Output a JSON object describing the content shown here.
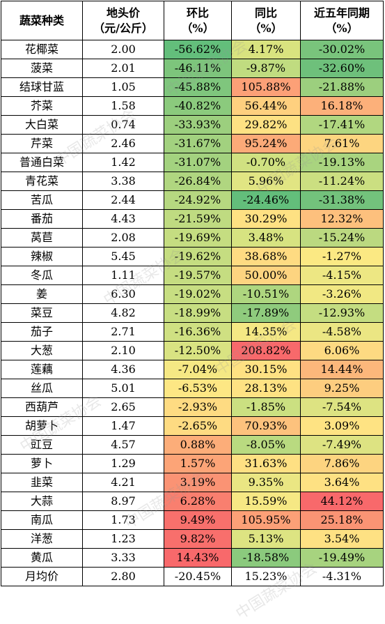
{
  "headers": [
    {
      "line1": "蔬菜种类",
      "line2": ""
    },
    {
      "line1": "地头价",
      "line2": "（元/公斤）"
    },
    {
      "line1": "环比",
      "line2": "（%）"
    },
    {
      "line1": "同比",
      "line2": "（%）"
    },
    {
      "line1": "近五年同期",
      "line2": "（%）"
    }
  ],
  "watermark": "中国蔬菜协会",
  "rows": [
    {
      "name": "花椰菜",
      "price": "2.00",
      "mom": "-56.62%",
      "yoy": "4.17%",
      "five": "-30.02%",
      "c_mom": "#63be7b",
      "c_yoy": "#d9e37f",
      "c_five": "#79c47c"
    },
    {
      "name": "菠菜",
      "price": "2.01",
      "mom": "-46.11%",
      "yoy": "-9.87%",
      "five": "-32.60%",
      "c_mom": "#7dc57c",
      "c_yoy": "#c0dc80",
      "c_five": "#6ec07b"
    },
    {
      "name": "结球甘蓝",
      "price": "1.05",
      "mom": "-45.88%",
      "yoy": "105.88%",
      "five": "-21.88%",
      "c_mom": "#7fc67d",
      "c_yoy": "#fca077",
      "c_five": "#9ccf7e"
    },
    {
      "name": "芥菜",
      "price": "1.58",
      "mom": "-40.82%",
      "yoy": "56.44%",
      "five": "16.18%",
      "c_mom": "#8bca7d",
      "c_yoy": "#fed07f",
      "c_five": "#fcb07a"
    },
    {
      "name": "大白菜",
      "price": "0.74",
      "mom": "-33.93%",
      "yoy": "29.82%",
      "five": "-17.41%",
      "c_mom": "#9ccf7e",
      "c_yoy": "#fde183",
      "c_five": "#b1d780"
    },
    {
      "name": "芹菜",
      "price": "2.46",
      "mom": "-31.67%",
      "yoy": "95.24%",
      "five": "7.61%",
      "c_mom": "#a2d17f",
      "c_yoy": "#fcaa78",
      "c_five": "#fdd580"
    },
    {
      "name": "普通白菜",
      "price": "1.42",
      "mom": "-31.07%",
      "yoy": "-0.70%",
      "five": "-19.13%",
      "c_mom": "#a3d27f",
      "c_yoy": "#d0e181",
      "c_five": "#a9d47f"
    },
    {
      "name": "青花菜",
      "price": "3.38",
      "mom": "-26.84%",
      "yoy": "5.96%",
      "five": "-11.24%",
      "c_mom": "#b0d680",
      "c_yoy": "#e1e583",
      "c_five": "#cbdf81"
    },
    {
      "name": "苦瓜",
      "price": "2.44",
      "mom": "-24.92%",
      "yoy": "-24.46%",
      "five": "-31.38%",
      "c_mom": "#b6d880",
      "c_yoy": "#63be7b",
      "c_five": "#73c27c"
    },
    {
      "name": "番茄",
      "price": "4.43",
      "mom": "-21.59%",
      "yoy": "30.29%",
      "five": "12.32%",
      "c_mom": "#bfdb81",
      "c_yoy": "#fee183",
      "c_five": "#fdc07d"
    },
    {
      "name": "莴苣",
      "price": "2.08",
      "mom": "-19.69%",
      "yoy": "3.48%",
      "five": "-15.24%",
      "c_mom": "#c5dd81",
      "c_yoy": "#d7e381",
      "c_five": "#bbd980"
    },
    {
      "name": "辣椒",
      "price": "5.45",
      "mom": "-19.62%",
      "yoy": "38.68%",
      "five": "-1.27%",
      "c_mom": "#c5dd81",
      "c_yoy": "#fedb82",
      "c_five": "#fbe983"
    },
    {
      "name": "冬瓜",
      "price": "1.11",
      "mom": "-19.57%",
      "yoy": "50.00%",
      "five": "-4.15%",
      "c_mom": "#c5dd81",
      "c_yoy": "#fdd480",
      "c_five": "#ede783"
    },
    {
      "name": "姜",
      "price": "6.30",
      "mom": "-19.02%",
      "yoy": "-10.51%",
      "five": "-3.26%",
      "c_mom": "#c7de82",
      "c_yoy": "#aed67f",
      "c_five": "#f1e883"
    },
    {
      "name": "菜豆",
      "price": "4.82",
      "mom": "-18.99%",
      "yoy": "-17.89%",
      "five": "-12.93%",
      "c_mom": "#c7de82",
      "c_yoy": "#8fcb7d",
      "c_five": "#c4dd81"
    },
    {
      "name": "茄子",
      "price": "2.71",
      "mom": "-16.36%",
      "yoy": "14.35%",
      "five": "-4.58%",
      "c_mom": "#cfe082",
      "c_yoy": "#f5e884",
      "c_five": "#ebe683"
    },
    {
      "name": "大葱",
      "price": "2.10",
      "mom": "-12.50%",
      "yoy": "208.82%",
      "five": "6.06%",
      "c_mom": "#d9e382",
      "c_yoy": "#f8696b",
      "c_five": "#fdda82"
    },
    {
      "name": "莲藕",
      "price": "4.36",
      "mom": "-7.04%",
      "yoy": "30.15%",
      "five": "14.44%",
      "c_mom": "#f5e884",
      "c_yoy": "#fee183",
      "c_five": "#fcb77b"
    },
    {
      "name": "丝瓜",
      "price": "5.01",
      "mom": "-6.53%",
      "yoy": "28.13%",
      "five": "9.25%",
      "c_mom": "#fde784",
      "c_yoy": "#fee283",
      "c_five": "#fdcd7f"
    },
    {
      "name": "西葫芦",
      "price": "2.65",
      "mom": "-2.93%",
      "yoy": "-1.85%",
      "five": "-7.54%",
      "c_mom": "#fedb82",
      "c_yoy": "#cbe081",
      "c_five": "#dde382"
    },
    {
      "name": "胡萝卜",
      "price": "1.47",
      "mom": "-2.65%",
      "yoy": "70.93%",
      "five": "3.09%",
      "c_mom": "#fedb82",
      "c_yoy": "#fdc27d",
      "c_five": "#fee383"
    },
    {
      "name": "豇豆",
      "price": "4.57",
      "mom": "0.88%",
      "yoy": "-8.05%",
      "five": "-7.49%",
      "c_mom": "#fcad79",
      "c_yoy": "#b9da80",
      "c_five": "#dde382"
    },
    {
      "name": "萝卜",
      "price": "1.29",
      "mom": "1.57%",
      "yoy": "31.63%",
      "five": "7.86%",
      "c_mom": "#fca477",
      "c_yoy": "#fee083",
      "c_five": "#fdd480"
    },
    {
      "name": "韭菜",
      "price": "4.21",
      "mom": "3.19%",
      "yoy": "9.35%",
      "five": "3.64%",
      "c_mom": "#fa9374",
      "c_yoy": "#eae683",
      "c_five": "#fee183"
    },
    {
      "name": "大蒜",
      "price": "8.97",
      "mom": "6.28%",
      "yoy": "15.59%",
      "five": "44.12%",
      "c_mom": "#f97f6f",
      "c_yoy": "#f6e884",
      "c_five": "#f8696b"
    },
    {
      "name": "南瓜",
      "price": "1.73",
      "mom": "9.49%",
      "yoy": "105.95%",
      "five": "25.18%",
      "c_mom": "#f8706c",
      "c_yoy": "#fca077",
      "c_five": "#fa9474"
    },
    {
      "name": "洋葱",
      "price": "1.23",
      "mom": "9.82%",
      "yoy": "5.13%",
      "five": "3.54%",
      "c_mom": "#f86f6c",
      "c_yoy": "#dde482",
      "c_five": "#fee183"
    },
    {
      "name": "黄瓜",
      "price": "3.33",
      "mom": "14.43%",
      "yoy": "-18.58%",
      "five": "-19.49%",
      "c_mom": "#f8696b",
      "c_yoy": "#8bca7d",
      "c_five": "#a7d37f"
    },
    {
      "name": "月均价",
      "price": "2.80",
      "mom": "-20.45%",
      "yoy": "15.23%",
      "five": "-4.31%",
      "c_mom": "#ffffff",
      "c_yoy": "#ffffff",
      "c_five": "#ffffff"
    }
  ]
}
